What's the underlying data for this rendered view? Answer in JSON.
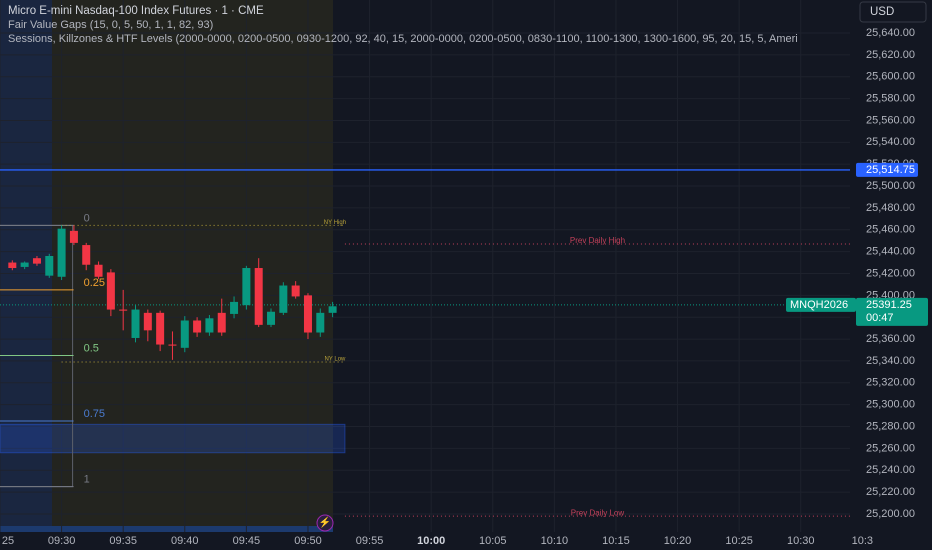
{
  "header": {
    "title": "Micro E-mini Nasdaq-100 Index Futures · 1 · CME",
    "indicators": [
      "Fair Value Gaps (15, 0, 5, 50, 1, 1, 82, 93)",
      "Sessions, Killzones & HTF Levels (2000-0000, 0200-0500, 0930-1200, 92, 40, 15, 2000-0000, 0200-0500, 0830-1100, 1100-1300, 1300-1600, 95, 20, 15, 5, Ameri"
    ]
  },
  "currency": "USD",
  "chart_data": {
    "type": "candlestick",
    "x": [
      "09:26",
      "09:27",
      "09:28",
      "09:29",
      "09:30",
      "09:31",
      "09:32",
      "09:33",
      "09:34",
      "09:35",
      "09:36",
      "09:37",
      "09:38",
      "09:39",
      "09:40",
      "09:41",
      "09:42",
      "09:43",
      "09:44",
      "09:45",
      "09:46",
      "09:47",
      "09:48",
      "09:49",
      "09:50",
      "09:51",
      "09:52"
    ],
    "open": [
      25430,
      25426,
      25434,
      25418,
      25417,
      25459,
      25446,
      25428,
      25421,
      25387,
      25361,
      25384,
      25384,
      25355,
      25352,
      25377,
      25366,
      25384,
      25383,
      25391,
      25425,
      25373,
      25384,
      25409,
      25400,
      25366,
      25384
    ],
    "high": [
      25432,
      25431,
      25436,
      25438,
      25464,
      25464,
      25448,
      25431,
      25424,
      25405,
      25391,
      25387,
      25386,
      25367,
      25381,
      25380,
      25382,
      25397,
      25399,
      25427,
      25434,
      25388,
      25412,
      25413,
      25402,
      25388,
      25394
    ],
    "low": [
      25423,
      25424,
      25427,
      25416,
      25414,
      25446,
      25423,
      25415,
      25381,
      25368,
      25357,
      25358,
      25349,
      25341,
      25348,
      25362,
      25363,
      25363,
      25379,
      25387,
      25371,
      25371,
      25382,
      25397,
      25360,
      25362,
      25380
    ],
    "close": [
      25425,
      25430,
      25429,
      25436,
      25461,
      25448,
      25428,
      25417,
      25387,
      25386,
      25387,
      25368,
      25355,
      25354,
      25377,
      25366,
      25379,
      25366,
      25394,
      25425,
      25373,
      25385,
      25409,
      25399,
      25366,
      25384,
      25390
    ],
    "up_color": "#089981",
    "down_color": "#f23645",
    "ylim": [
      25183.5,
      25670.2
    ],
    "yticks": [
      {
        "value": 25200,
        "label": "25,200.00"
      },
      {
        "value": 25220,
        "label": "25,220.00"
      },
      {
        "value": 25240,
        "label": "25,240.00"
      },
      {
        "value": 25260,
        "label": "25,260.00"
      },
      {
        "value": 25280,
        "label": "25,280.00"
      },
      {
        "value": 25300,
        "label": "25,300.00"
      },
      {
        "value": 25320,
        "label": "25,320.00"
      },
      {
        "value": 25340,
        "label": "25,340.00"
      },
      {
        "value": 25360,
        "label": "25,360.00"
      },
      {
        "value": 25380,
        "label": "25,380.00"
      },
      {
        "value": 25400,
        "label": "25,400.00"
      },
      {
        "value": 25420,
        "label": "25,420.00"
      },
      {
        "value": 25440,
        "label": "25,440.00"
      },
      {
        "value": 25460,
        "label": "25,460.00"
      },
      {
        "value": 25480,
        "label": "25,480.00"
      },
      {
        "value": 25500,
        "label": "25,500.00"
      },
      {
        "value": 25520,
        "label": "25,520.00"
      },
      {
        "value": 25540,
        "label": "25,540.00"
      },
      {
        "value": 25560,
        "label": "25,560.00"
      },
      {
        "value": 25580,
        "label": "25,580.00"
      },
      {
        "value": 25600,
        "label": "25,600.00"
      },
      {
        "value": 25620,
        "label": "25,620.00"
      },
      {
        "value": 25640,
        "label": "25,640.00"
      }
    ],
    "xlim": [
      "09:25",
      "10:34"
    ],
    "xticks": [
      {
        "value": "09:25",
        "label": "25"
      },
      "09:30",
      "09:35",
      "09:40",
      "09:45",
      "09:50",
      "09:55",
      "10:00",
      "10:05",
      "10:10",
      "10:15",
      "10:20",
      "10:25",
      "10:30",
      {
        "value": "10:35",
        "label": "10:3"
      }
    ],
    "grid": true,
    "last_price": {
      "value": 25391.25,
      "symbol": "MNQH2026",
      "countdown": "00:47",
      "color": "#089981"
    },
    "alert_line": {
      "value": 25514.75,
      "label": "25,514.75",
      "color": "#2962ff"
    },
    "levels": [
      {
        "label": "NY High",
        "price": 25464,
        "from": "09:30",
        "to": "09:53",
        "color": "#b8a23a"
      },
      {
        "label": "NY Low",
        "price": 25339,
        "from": "09:30",
        "to": "09:53",
        "color": "#b8a23a"
      },
      {
        "label": "Prev Daily High",
        "price": 25447,
        "from": "09:53",
        "to": "10:34",
        "color": "#c2415a"
      },
      {
        "label": "Prev Daily Low",
        "price": 25198,
        "from": "09:53",
        "to": "10:34",
        "color": "#c2415a"
      }
    ],
    "fib": {
      "levels": [
        0,
        0.25,
        0.5,
        0.75,
        1
      ],
      "prices": [
        25464,
        25405,
        25345,
        25285,
        25225
      ],
      "colors": [
        "#787b86",
        "#f0a030",
        "#81c784",
        "#4a7bd0",
        "#787b86"
      ]
    },
    "fvg": {
      "top": 25282,
      "bottom": 25256,
      "to": "09:53"
    }
  }
}
